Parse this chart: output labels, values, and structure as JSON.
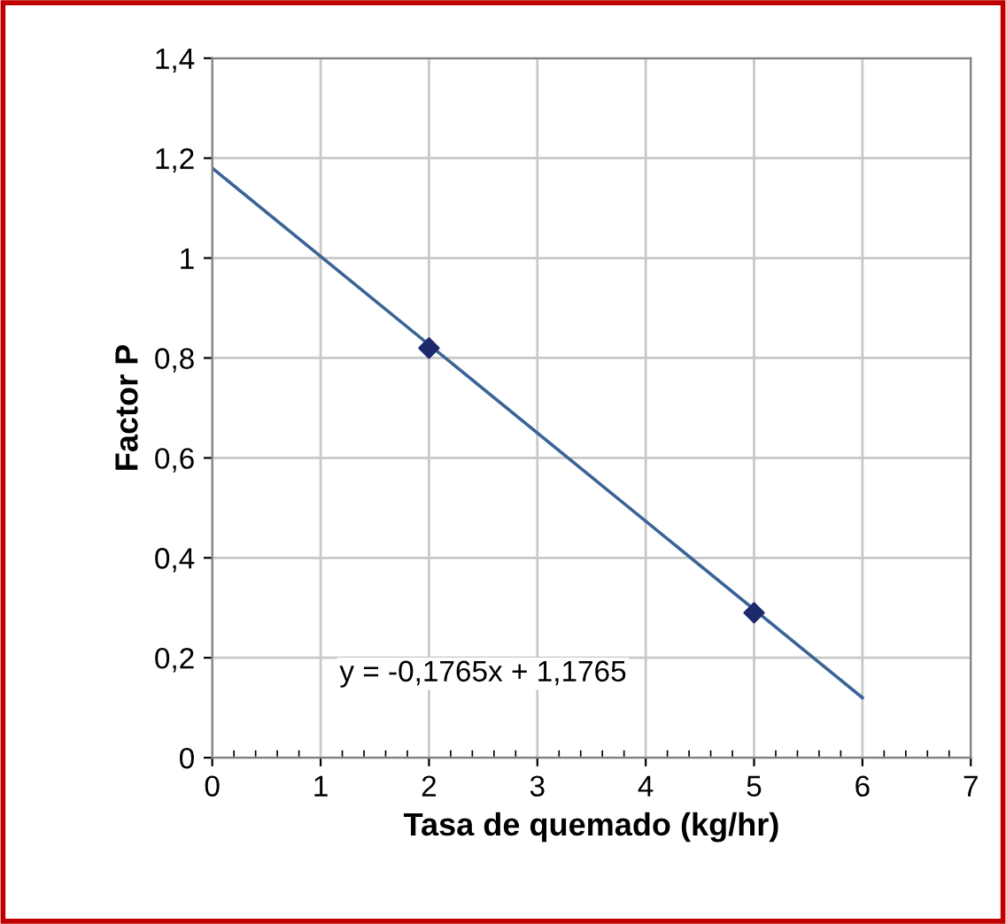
{
  "chart_data": {
    "type": "scatter",
    "xlabel": "Tasa de quemado (kg/hr)",
    "ylabel": "Factor P",
    "series": [
      {
        "color": "#1f2a6e",
        "x": [
          2,
          5
        ],
        "values": [
          0.82,
          0.29
        ],
        "marker": "diamond"
      },
      {
        "type": "line",
        "color": "#3a6496",
        "x": [
          0,
          6
        ],
        "values": [
          1.18,
          0.12
        ],
        "marker": "none"
      }
    ],
    "xlim": [
      0,
      7
    ],
    "xticks": [
      0,
      1,
      2,
      3,
      4,
      5,
      6,
      7
    ],
    "ylim": [
      0,
      1.4
    ],
    "yticks": [
      0,
      {
        "value": 0.2,
        "label": "0,2"
      },
      {
        "value": 0.4,
        "label": "0,4"
      },
      {
        "value": 0.6,
        "label": "0,6"
      },
      {
        "value": 0.8,
        "label": "0,8"
      },
      1,
      {
        "value": 1.2,
        "label": "1,2"
      },
      {
        "value": 1.4,
        "label": "1,4"
      }
    ],
    "grid": true,
    "annotations": [
      "y = -0,1765x + 1,1765"
    ]
  }
}
